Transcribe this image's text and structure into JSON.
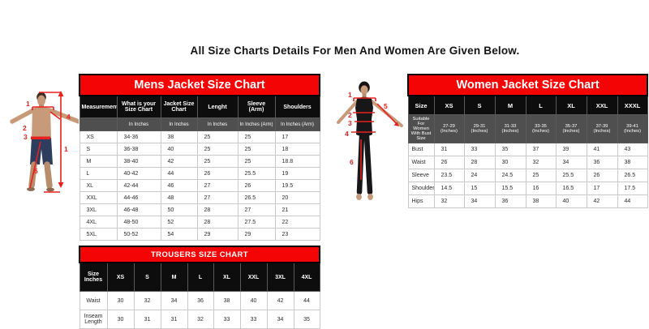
{
  "page": {
    "title": "All Size Charts Details For Men And Women Are Given Below."
  },
  "colors": {
    "title_bar_red": "#f40404",
    "header_black": "#0d0d0d",
    "subheader_gray": "#4f4f4f",
    "annotation_red": "#e8201e"
  },
  "mens_chart": {
    "title": "Mens Jacket Size Chart",
    "columns": [
      "Measurement",
      "What is your Size Chart",
      "Jacket Size Chart",
      "Lenght",
      "Sleeve (Arm)",
      "Shoulders"
    ],
    "units_row": [
      "",
      "In Inches",
      "In Inches",
      "In Inches",
      "In Inches (Arm)",
      "In Inches (Arm)"
    ],
    "rows": [
      [
        "XS",
        "34-36",
        "38",
        "25",
        "25",
        "17"
      ],
      [
        "S",
        "36-38",
        "40",
        "25",
        "25",
        "18"
      ],
      [
        "M",
        "38-40",
        "42",
        "25",
        "25",
        "18.8"
      ],
      [
        "L",
        "40-42",
        "44",
        "26",
        "25.5",
        "19"
      ],
      [
        "XL",
        "42-44",
        "46",
        "27",
        "26",
        "19.5"
      ],
      [
        "XXL",
        "44-46",
        "48",
        "27",
        "26.5",
        "20"
      ],
      [
        "3XL",
        "46-48",
        "50",
        "28",
        "27",
        "21"
      ],
      [
        "4XL",
        "48-50",
        "52",
        "28",
        "27.5",
        "22"
      ],
      [
        "5XL",
        "50-52",
        "54",
        "29",
        "29",
        "23"
      ]
    ]
  },
  "women_chart": {
    "title": "Women Jacket Size Chart",
    "columns": [
      "Size",
      "XS",
      "S",
      "M",
      "L",
      "XL",
      "XXL",
      "XXXL"
    ],
    "units_row": [
      "Suitable For Women With Bust Size",
      "27-29 (Inches)",
      "29-31 (Inches)",
      "31-33 (Inches)",
      "33-35 (Inches)",
      "35-37 (Inches)",
      "37-39 (Inches)",
      "39-41 (Inches)"
    ],
    "rows": [
      [
        "Bust",
        "31",
        "33",
        "35",
        "37",
        "39",
        "41",
        "43"
      ],
      [
        "Waist",
        "26",
        "28",
        "30",
        "32",
        "34",
        "36",
        "38"
      ],
      [
        "Sleeve",
        "23.5",
        "24",
        "24.5",
        "25",
        "25.5",
        "26",
        "26.5"
      ],
      [
        "Shoulders",
        "14.5",
        "15",
        "15.5",
        "16",
        "16.5",
        "17",
        "17.5"
      ],
      [
        "Hips",
        "32",
        "34",
        "36",
        "38",
        "40",
        "42",
        "44"
      ]
    ]
  },
  "trousers_chart": {
    "title": "TROUSERS SIZE CHART",
    "columns": [
      "Size Inches",
      "XS",
      "S",
      "M",
      "L",
      "XL",
      "XXL",
      "3XL",
      "4XL"
    ],
    "rows": [
      [
        "Waist",
        "30",
        "32",
        "34",
        "36",
        "38",
        "40",
        "42",
        "44"
      ],
      [
        "Inseam Length",
        "30",
        "31",
        "31",
        "32",
        "33",
        "33",
        "34",
        "35"
      ]
    ]
  },
  "man_figure": {
    "annotations": {
      "shoulder": "1",
      "chest": "2",
      "waist": "3",
      "upper_height": "4",
      "full_height": "1",
      "inseam": "5"
    }
  },
  "woman_figure": {
    "annotations": {
      "shoulder": "1",
      "sleeve": "5",
      "bust": "2",
      "waist": "3",
      "hips": "4",
      "inseam": "6"
    }
  }
}
